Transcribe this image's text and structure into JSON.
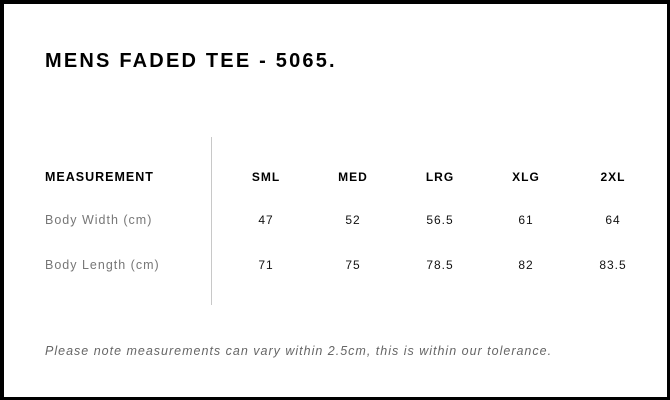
{
  "title": "MENS FADED TEE - 5065.",
  "table": {
    "header": [
      "MEASUREMENT",
      "SML",
      "MED",
      "LRG",
      "XLG",
      "2XL"
    ],
    "rows": [
      {
        "label": "Body Width (cm)",
        "values": [
          "47",
          "52",
          "56.5",
          "61",
          "64"
        ]
      },
      {
        "label": "Body Length (cm)",
        "values": [
          "71",
          "75",
          "78.5",
          "82",
          "83.5"
        ]
      }
    ]
  },
  "note": "Please note measurements can vary within 2.5cm, this is within our tolerance."
}
